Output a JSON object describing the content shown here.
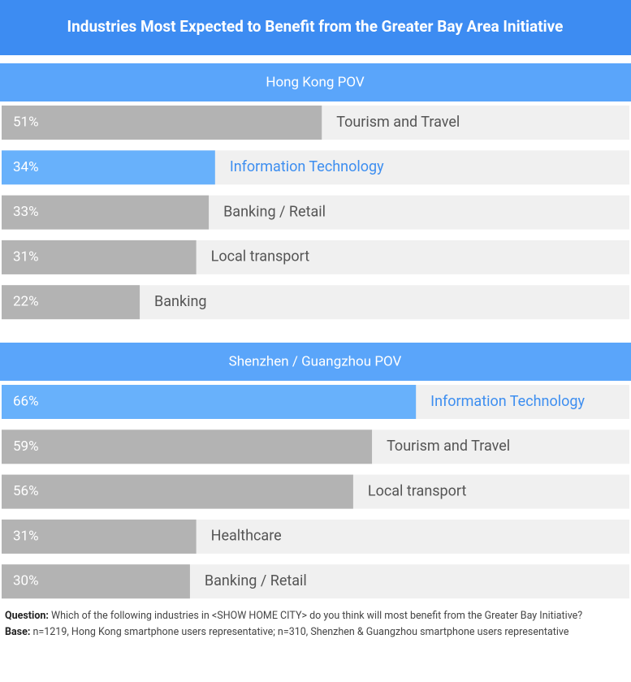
{
  "title": "Industries Most Expected to Benefit from the Greater Bay Area Initiative",
  "chart_data": [
    {
      "type": "bar",
      "title": "Hong Kong POV",
      "categories": [
        "Tourism and Travel",
        "Information Technology",
        "Banking / Retail",
        "Local transport",
        "Banking"
      ],
      "values": [
        51,
        34,
        33,
        31,
        22
      ],
      "value_labels": [
        "51%",
        "34%",
        "33%",
        "31%",
        "22%"
      ],
      "colors": [
        "#b3b3b3",
        "#68b1fb",
        "#b3b3b3",
        "#b3b3b3",
        "#b3b3b3"
      ],
      "label_colors": [
        "#555555",
        "#3d8ef0",
        "#555555",
        "#555555",
        "#555555"
      ],
      "xlim": [
        0,
        100
      ]
    },
    {
      "type": "bar",
      "title": "Shenzhen / Guangzhou POV",
      "categories": [
        "Information Technology",
        "Tourism and Travel",
        "Local transport",
        "Healthcare",
        "Banking / Retail"
      ],
      "values": [
        66,
        59,
        56,
        31,
        30
      ],
      "value_labels": [
        "66%",
        "59%",
        "56%",
        "31%",
        "30%"
      ],
      "colors": [
        "#68b1fb",
        "#b3b3b3",
        "#b3b3b3",
        "#b3b3b3",
        "#b3b3b3"
      ],
      "label_colors": [
        "#3d8ef0",
        "#555555",
        "#555555",
        "#555555",
        "#555555"
      ],
      "xlim": [
        0,
        100
      ]
    }
  ],
  "notes": {
    "question_label": "Question:",
    "question": "Which of the following industries in <SHOW HOME CITY> do you think will most benefit from the Greater Bay Initiative?",
    "base_label": "Base:",
    "base": "n=1219, Hong Kong smartphone users representative; n=310, Shenzhen & Guangzhou smartphone users representative"
  }
}
